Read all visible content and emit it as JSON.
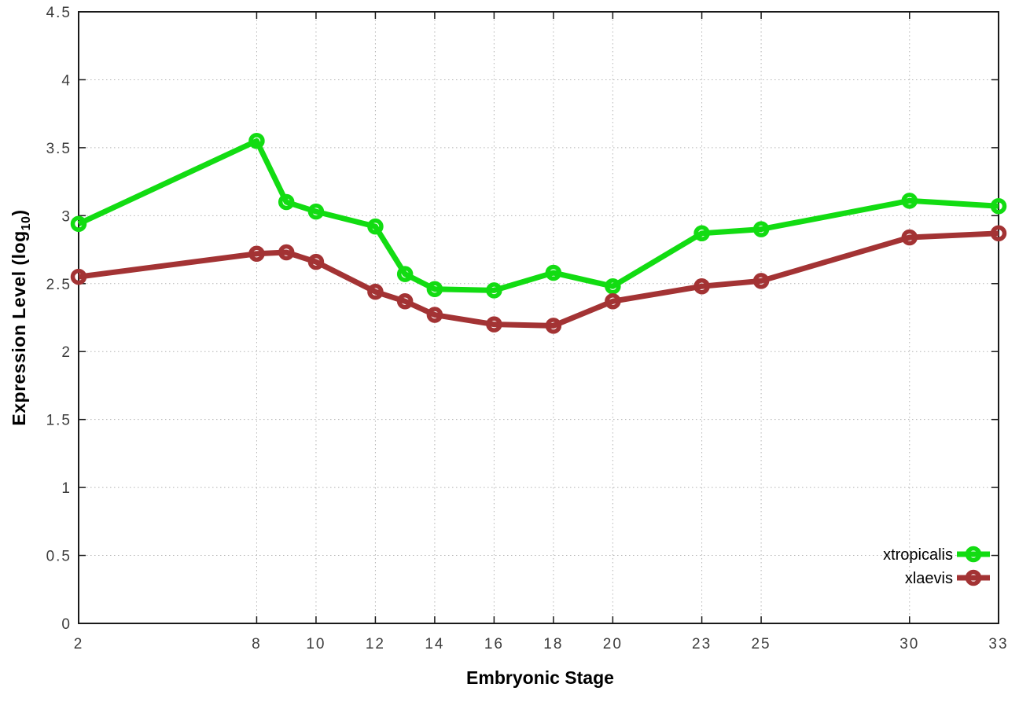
{
  "figure": {
    "background_color": "#ffffff",
    "border_color": "#1a1a1a",
    "grid_color": "#b4b4b4",
    "tick_label_color": "#3c3c3c"
  },
  "chart_data": {
    "type": "line",
    "title": "",
    "xlabel": "Embryonic Stage",
    "ylabel": "Expression Level (log10)",
    "ylabel_parts": {
      "prefix": "Expression Level (log",
      "sub": "10",
      "suffix": ")"
    },
    "xlim": [
      2,
      33
    ],
    "ylim": [
      0,
      4.5
    ],
    "x_ticks": [
      2,
      8,
      10,
      12,
      14,
      16,
      18,
      20,
      23,
      25,
      30,
      33
    ],
    "y_ticks": [
      0,
      0.5,
      1,
      1.5,
      2,
      2.5,
      3,
      3.5,
      4,
      4.5
    ],
    "grid": true,
    "legend_position": "bottom-right",
    "x": [
      2,
      8,
      9,
      10,
      12,
      13,
      14,
      16,
      18,
      20,
      23,
      25,
      30,
      33
    ],
    "series": [
      {
        "name": "xtropicalis",
        "color": "#12dc12",
        "marker": "open-circle",
        "values": [
          2.94,
          3.55,
          3.1,
          3.03,
          2.92,
          2.57,
          2.46,
          2.45,
          2.58,
          2.48,
          2.87,
          2.9,
          3.11,
          3.07
        ]
      },
      {
        "name": "xlaevis",
        "color": "#a33334",
        "marker": "open-circle",
        "values": [
          2.55,
          2.72,
          2.73,
          2.66,
          2.44,
          2.37,
          2.27,
          2.2,
          2.19,
          2.37,
          2.48,
          2.52,
          2.84,
          2.87
        ]
      }
    ]
  }
}
